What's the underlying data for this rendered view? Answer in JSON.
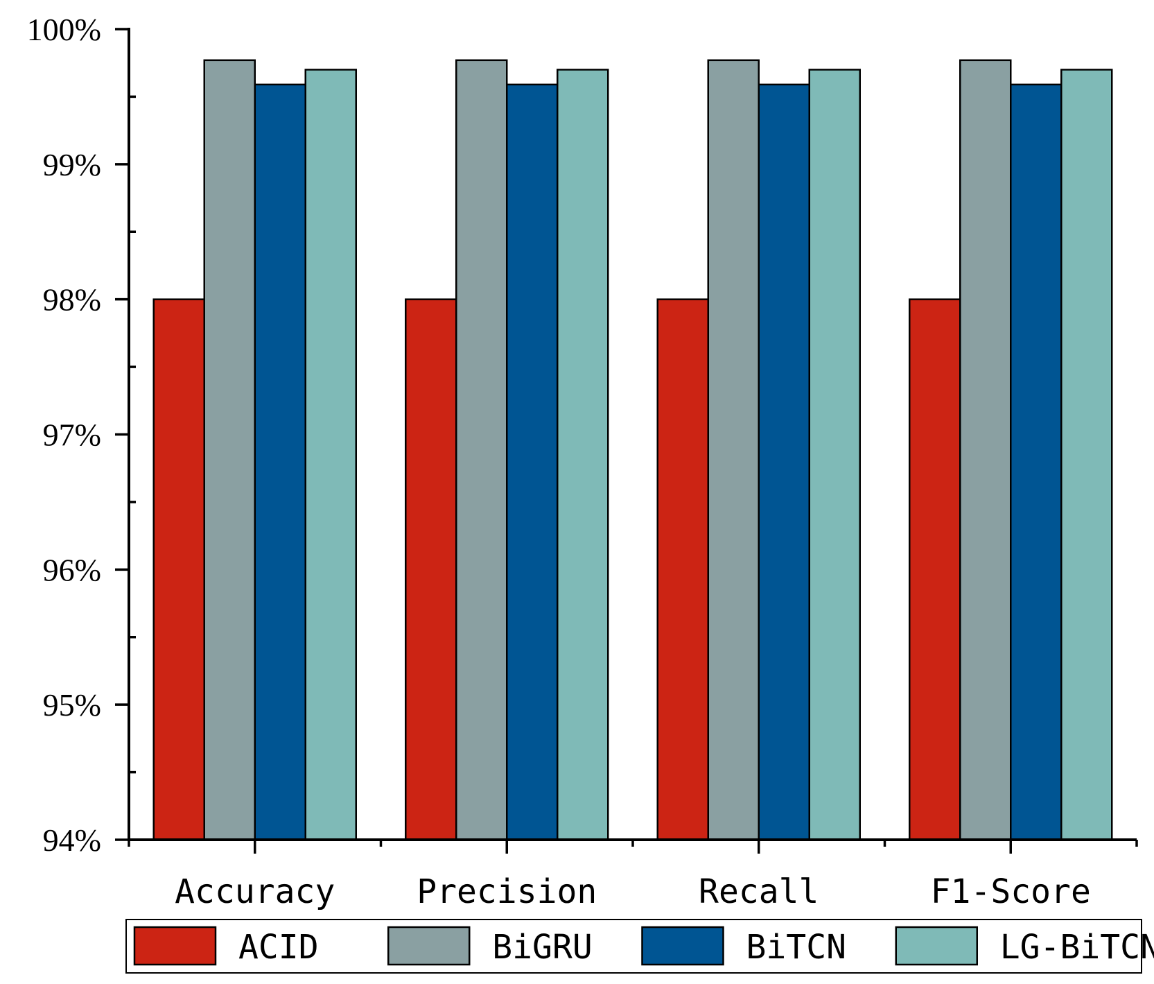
{
  "chart_data": {
    "type": "bar",
    "title": "",
    "xlabel": "",
    "ylabel": "",
    "categories": [
      "Accuracy",
      "Precision",
      "Recall",
      "F1-Score"
    ],
    "series": [
      {
        "name": "ACID",
        "color": "#cc2414",
        "values": [
          98.0,
          98.0,
          98.0,
          98.0
        ]
      },
      {
        "name": "BiGRU",
        "color": "#8aa0a2",
        "values": [
          99.77,
          99.77,
          99.77,
          99.77
        ]
      },
      {
        "name": "BiTCN",
        "color": "#005593",
        "values": [
          99.59,
          99.59,
          99.59,
          99.59
        ]
      },
      {
        "name": "LG-BiTCN",
        "color": "#7fbab7",
        "values": [
          99.7,
          99.7,
          99.7,
          99.7
        ]
      }
    ],
    "ylim": [
      94,
      100
    ],
    "yticks": [
      "94%",
      "95%",
      "96%",
      "97%",
      "98%",
      "99%",
      "100%"
    ],
    "grid": false,
    "legend": "bottom"
  }
}
